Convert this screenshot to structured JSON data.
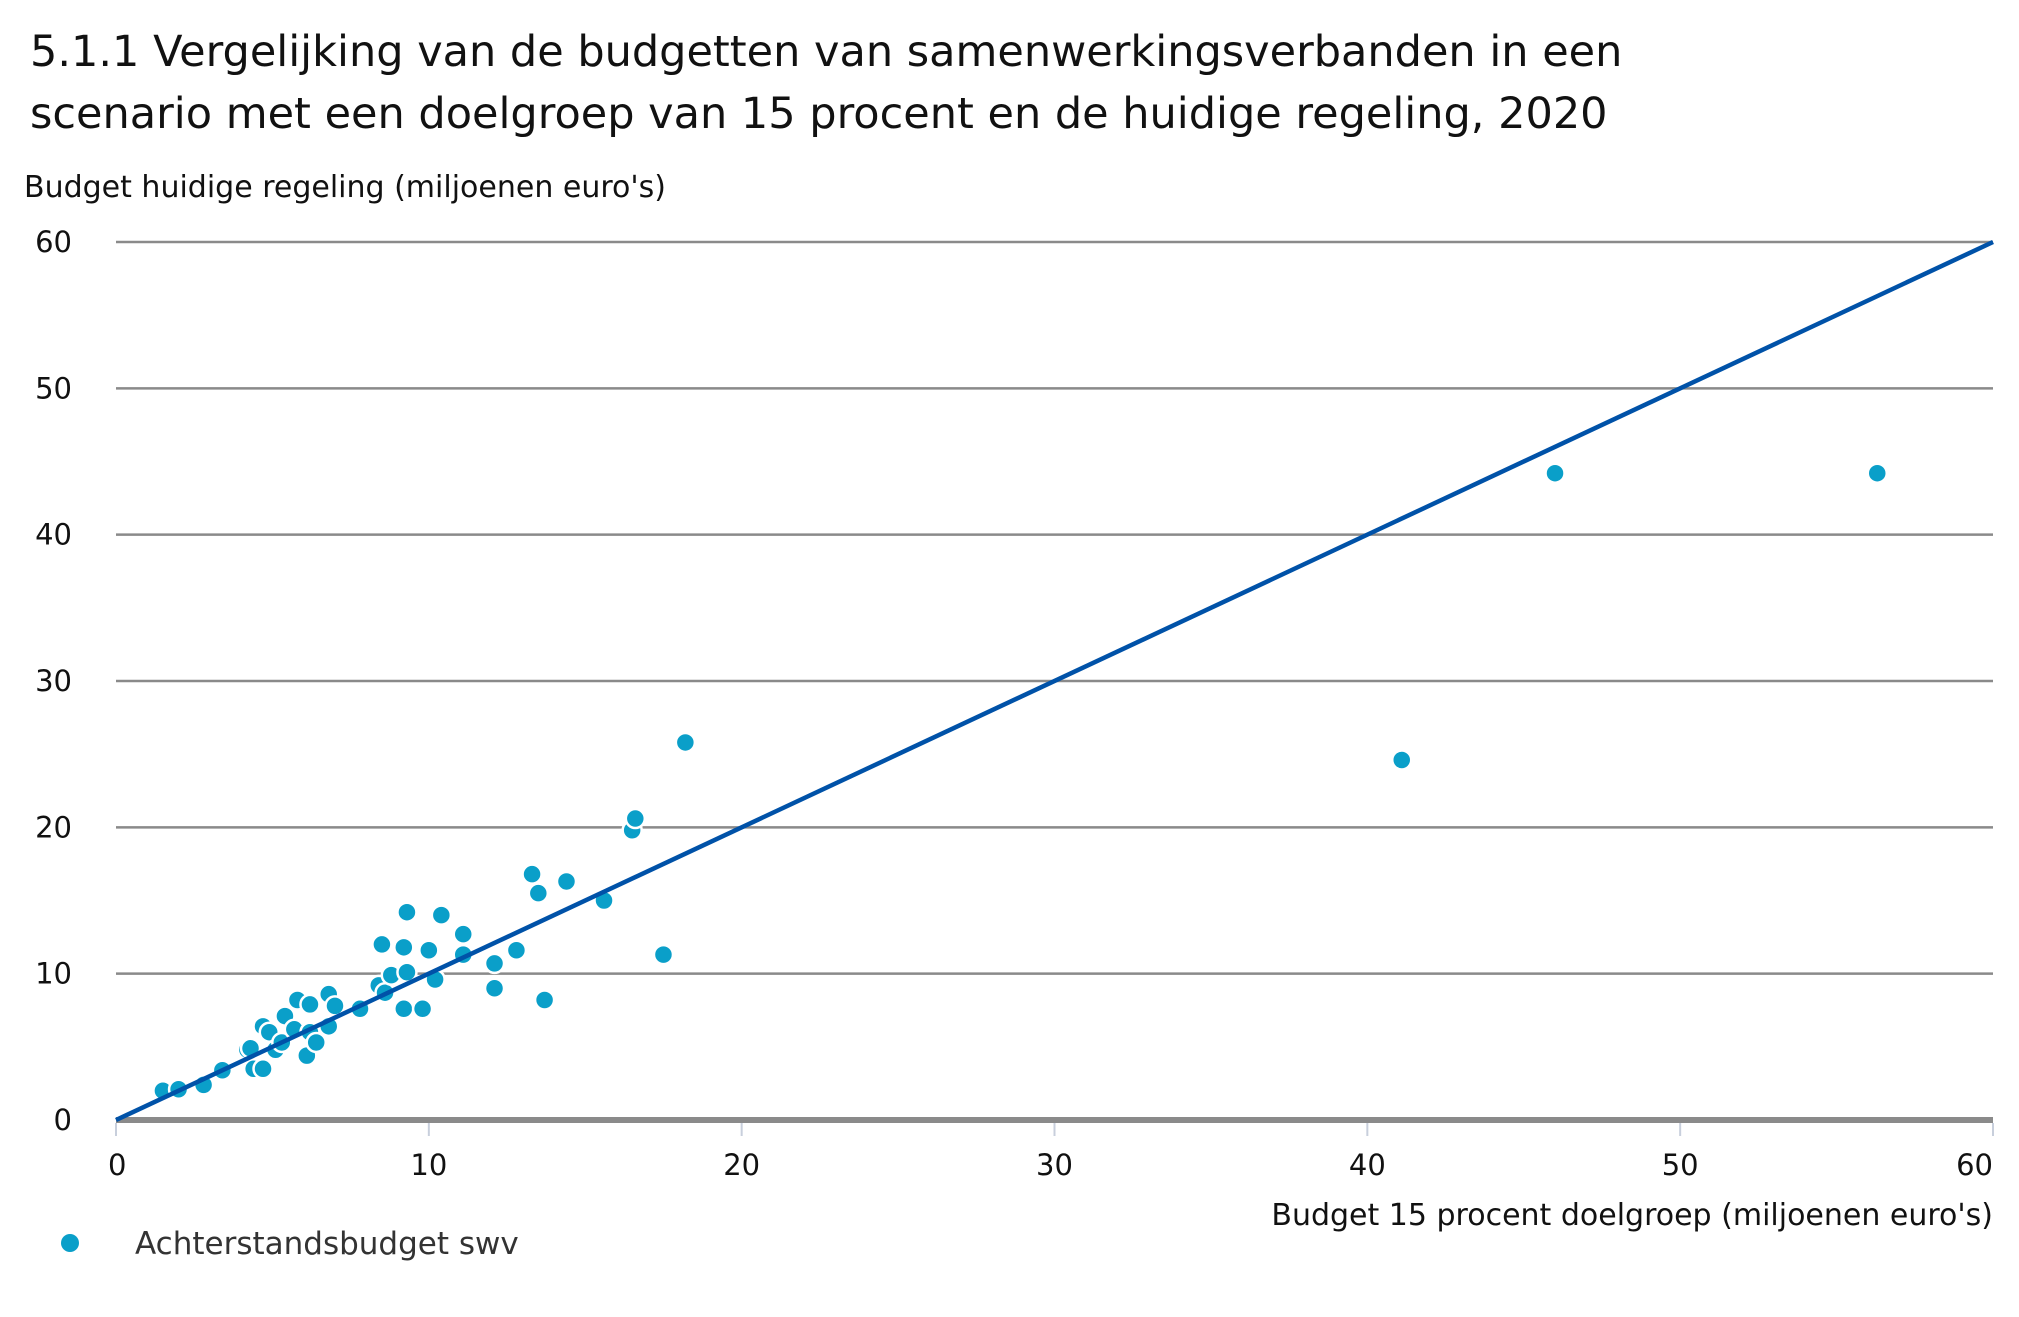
{
  "chart_data": {
    "type": "scatter",
    "title_lines": [
      "5.1.1 Vergelijking van de budgetten van samenwerkingsverbanden in een",
      "scenario met een doelgroep van 15 procent en de huidige regeling, 2020"
    ],
    "ylabel": "Budget huidige regeling (miljoenen euro's)",
    "xlabel": "Budget 15 procent doelgroep (miljoenen euro's)",
    "xlim": [
      0,
      60
    ],
    "ylim": [
      0,
      60
    ],
    "xticks": [
      "0",
      "10",
      "20",
      "30",
      "40",
      "50",
      "60"
    ],
    "yticks": [
      "0",
      "10",
      "20",
      "30",
      "40",
      "50",
      "60"
    ],
    "grid": "horizontal",
    "legend_position": "bottom-left",
    "colors": {
      "points": "#0a9fc9",
      "reference_line": "#0052a8",
      "grid": "#8a8a8a"
    },
    "reference_line": {
      "from": [
        0,
        0
      ],
      "to": [
        60,
        60
      ]
    },
    "series": [
      {
        "name": "Achterstandsbudget swv",
        "points": [
          [
            1.5,
            2.0
          ],
          [
            2.0,
            2.1
          ],
          [
            2.8,
            2.4
          ],
          [
            3.4,
            3.4
          ],
          [
            4.2,
            4.8
          ],
          [
            4.3,
            4.9
          ],
          [
            4.4,
            3.5
          ],
          [
            4.7,
            3.5
          ],
          [
            4.7,
            6.4
          ],
          [
            4.9,
            6.0
          ],
          [
            5.1,
            4.8
          ],
          [
            5.3,
            5.3
          ],
          [
            5.4,
            7.1
          ],
          [
            5.7,
            6.2
          ],
          [
            5.8,
            8.2
          ],
          [
            6.1,
            4.4
          ],
          [
            6.2,
            6.0
          ],
          [
            6.2,
            7.9
          ],
          [
            6.4,
            5.3
          ],
          [
            6.8,
            8.6
          ],
          [
            6.8,
            6.4
          ],
          [
            7.0,
            7.8
          ],
          [
            7.8,
            7.6
          ],
          [
            8.4,
            9.2
          ],
          [
            8.5,
            12.0
          ],
          [
            8.6,
            8.7
          ],
          [
            8.8,
            9.9
          ],
          [
            9.2,
            7.6
          ],
          [
            9.2,
            11.8
          ],
          [
            9.3,
            14.2
          ],
          [
            9.3,
            10.1
          ],
          [
            9.8,
            7.6
          ],
          [
            10.0,
            11.6
          ],
          [
            10.2,
            9.6
          ],
          [
            10.4,
            14.0
          ],
          [
            11.1,
            12.7
          ],
          [
            11.1,
            11.3
          ],
          [
            12.1,
            9.0
          ],
          [
            12.1,
            10.7
          ],
          [
            12.8,
            11.6
          ],
          [
            13.3,
            16.8
          ],
          [
            13.5,
            15.5
          ],
          [
            13.7,
            8.2
          ],
          [
            14.4,
            16.3
          ],
          [
            15.6,
            15.0
          ],
          [
            16.5,
            19.8
          ],
          [
            16.6,
            20.6
          ],
          [
            17.5,
            11.3
          ],
          [
            18.2,
            25.8
          ],
          [
            41.1,
            24.6
          ],
          [
            46.0,
            44.2
          ],
          [
            56.3,
            44.2
          ]
        ]
      }
    ]
  }
}
